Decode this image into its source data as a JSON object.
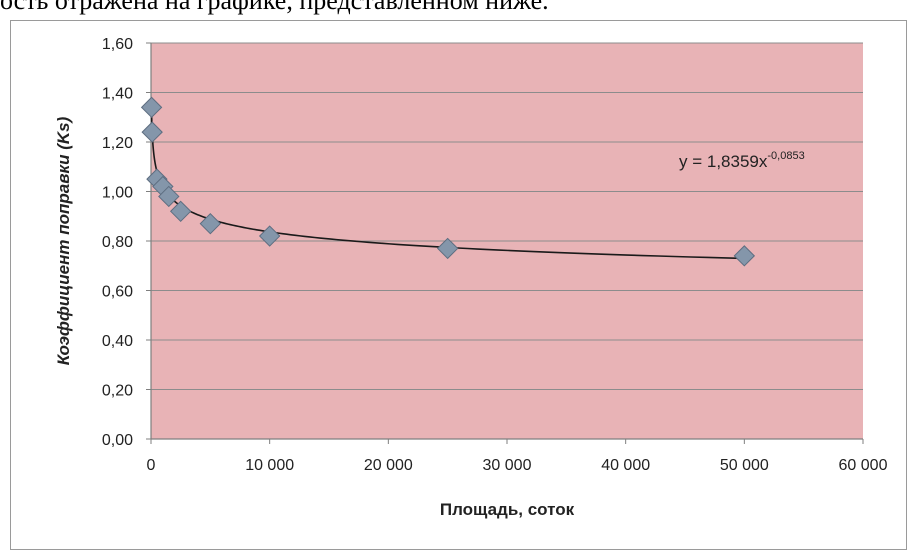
{
  "page": {
    "caption": "ость отражена на графике, представленном ниже."
  },
  "colors": {
    "plot_background": "#e8b3b6",
    "gridline": "#8c8c8c",
    "marker": "#8496aa",
    "marker_stroke": "#5d6d80",
    "trendline": "#1a1a1a"
  },
  "chart_data": {
    "type": "scatter",
    "xlabel": "Площадь, соток",
    "ylabel": "Коэффициент поправки (Ks)",
    "xlim": [
      0,
      60000
    ],
    "ylim": [
      0,
      1.6
    ],
    "x_ticks": [
      0,
      10000,
      20000,
      30000,
      40000,
      50000,
      60000
    ],
    "x_tick_labels": [
      "0",
      "10 000",
      "20 000",
      "30 000",
      "40 000",
      "50 000",
      "60 000"
    ],
    "y_ticks": [
      0,
      0.2,
      0.4,
      0.6,
      0.8,
      1.0,
      1.2,
      1.4,
      1.6
    ],
    "y_tick_labels": [
      "0,00",
      "0,20",
      "0,40",
      "0,60",
      "0,80",
      "1,00",
      "1,20",
      "1,40",
      "1,60"
    ],
    "grid": true,
    "series": [
      {
        "x": [
          50,
          100,
          500,
          1000,
          1500,
          2500,
          5000,
          10000,
          25000,
          50000
        ],
        "y": [
          1.34,
          1.24,
          1.05,
          1.02,
          0.98,
          0.92,
          0.87,
          0.82,
          0.77,
          0.74
        ]
      }
    ],
    "trendline": {
      "type": "power",
      "a": 1.8359,
      "b": -0.0853,
      "label": "y = 1,8359x",
      "label_exponent": "-0,0853"
    }
  }
}
